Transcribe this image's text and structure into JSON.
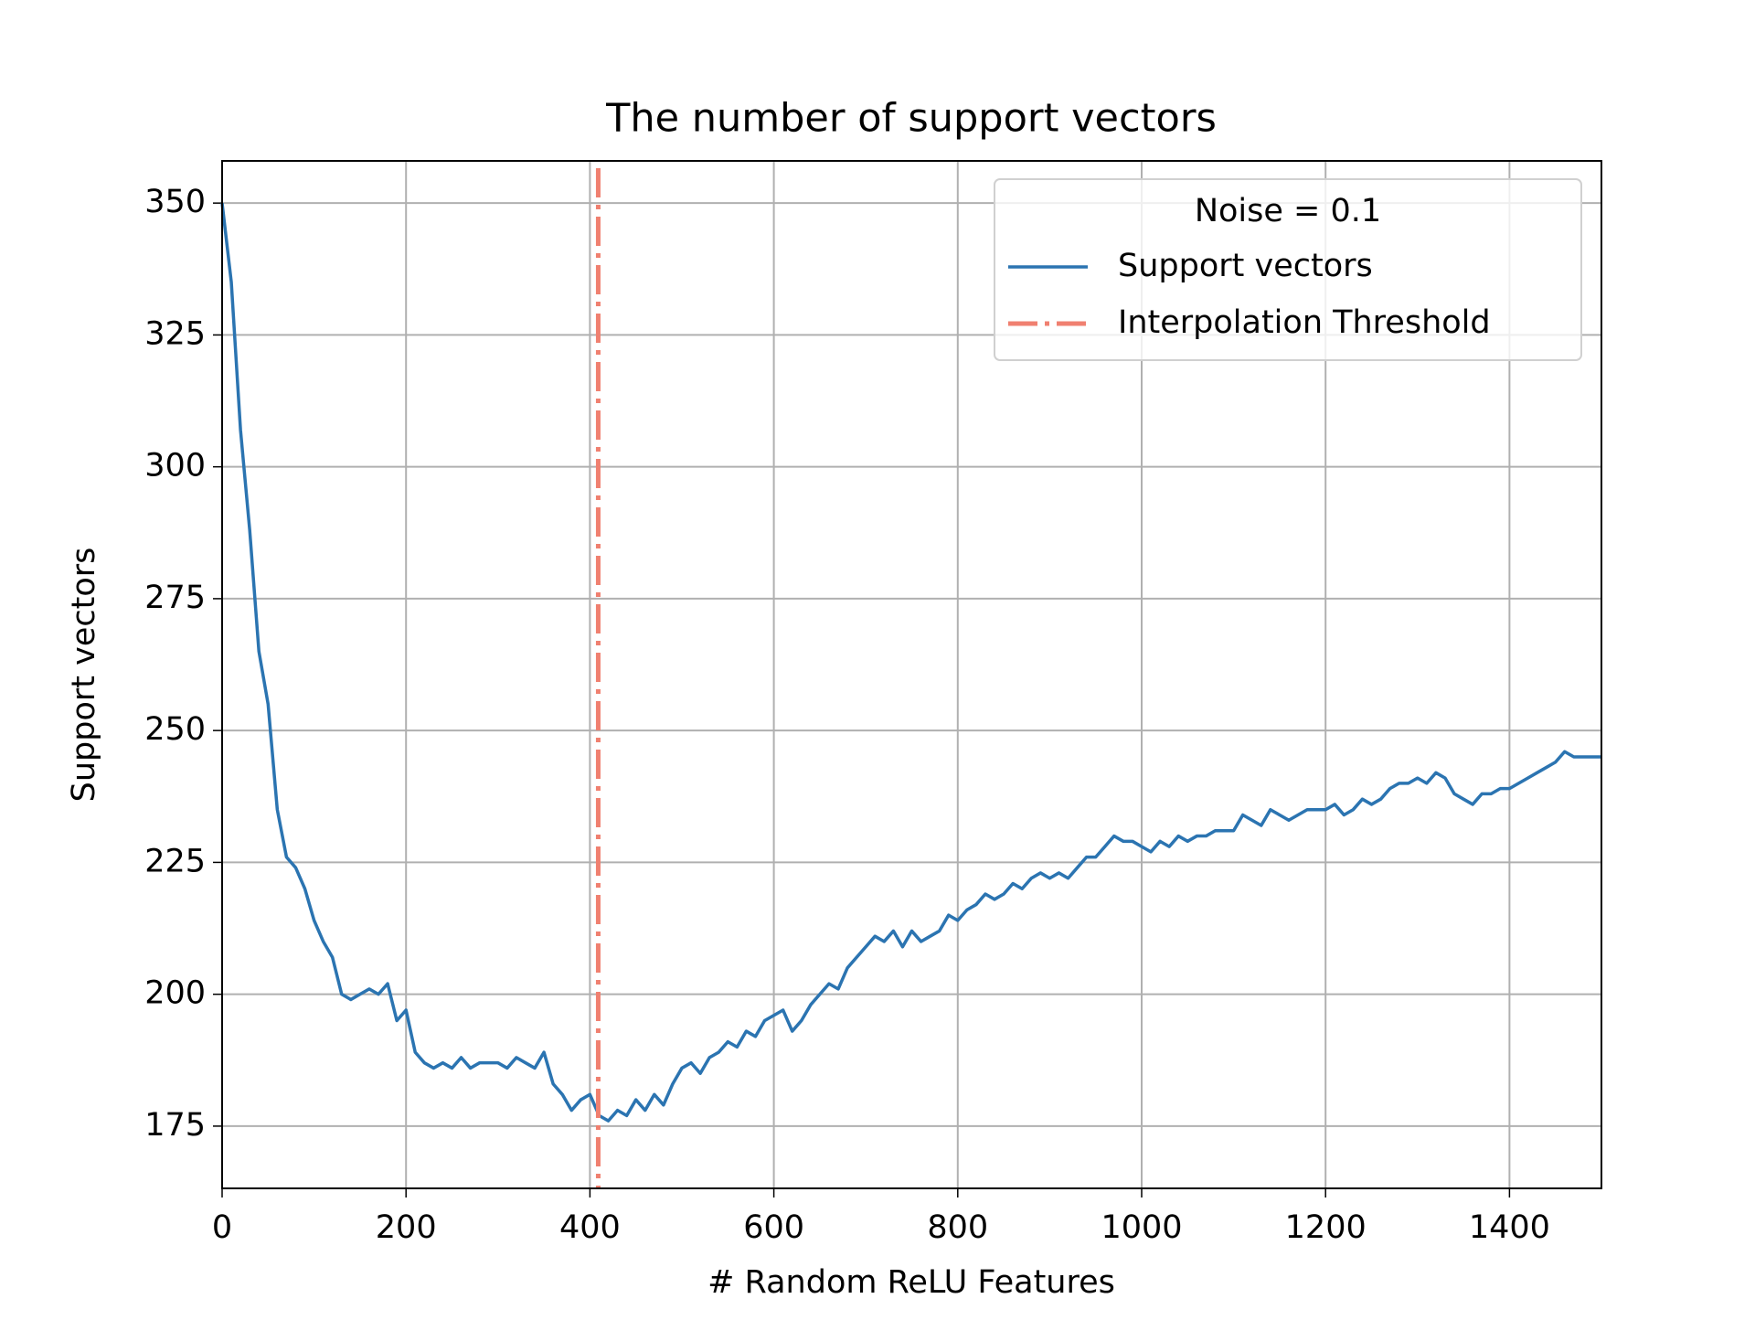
{
  "chart_data": {
    "type": "line",
    "title": "The number of support vectors",
    "xlabel": "# Random ReLU Features",
    "ylabel": "Support vectors",
    "x": [
      0,
      10,
      20,
      30,
      40,
      50,
      60,
      70,
      80,
      90,
      100,
      110,
      120,
      130,
      140,
      150,
      160,
      170,
      180,
      190,
      200,
      210,
      220,
      230,
      240,
      250,
      260,
      270,
      280,
      290,
      300,
      310,
      320,
      330,
      340,
      350,
      360,
      370,
      380,
      390,
      400,
      410,
      420,
      430,
      440,
      450,
      460,
      470,
      480,
      490,
      500,
      510,
      520,
      530,
      540,
      550,
      560,
      570,
      580,
      590,
      600,
      610,
      620,
      630,
      640,
      650,
      660,
      670,
      680,
      690,
      700,
      710,
      720,
      730,
      740,
      750,
      760,
      770,
      780,
      790,
      800,
      810,
      820,
      830,
      840,
      850,
      860,
      870,
      880,
      890,
      900,
      910,
      920,
      930,
      940,
      950,
      960,
      970,
      980,
      990,
      1000,
      1010,
      1020,
      1030,
      1040,
      1050,
      1060,
      1070,
      1080,
      1090,
      1100,
      1110,
      1120,
      1130,
      1140,
      1150,
      1160,
      1170,
      1180,
      1190,
      1200,
      1210,
      1220,
      1230,
      1240,
      1250,
      1260,
      1270,
      1280,
      1290,
      1300,
      1310,
      1320,
      1330,
      1340,
      1350,
      1360,
      1370,
      1380,
      1390,
      1400,
      1410,
      1420,
      1430,
      1440,
      1450,
      1460,
      1470,
      1480,
      1490,
      1500
    ],
    "series": [
      {
        "name": "Support vectors",
        "color": "#2b74b1",
        "values": [
          350,
          335,
          307,
          288,
          265,
          255,
          235,
          226,
          224,
          220,
          214,
          210,
          207,
          200,
          199,
          200,
          201,
          200,
          202,
          195,
          197,
          189,
          187,
          186,
          187,
          186,
          188,
          186,
          187,
          187,
          187,
          186,
          188,
          187,
          186,
          189,
          183,
          181,
          178,
          180,
          181,
          177,
          176,
          178,
          177,
          180,
          178,
          181,
          179,
          183,
          186,
          187,
          185,
          188,
          189,
          191,
          190,
          193,
          192,
          195,
          196,
          197,
          193,
          195,
          198,
          200,
          202,
          201,
          205,
          207,
          209,
          211,
          210,
          212,
          209,
          212,
          210,
          211,
          212,
          215,
          214,
          216,
          217,
          219,
          218,
          219,
          221,
          220,
          222,
          223,
          222,
          223,
          222,
          224,
          226,
          226,
          228,
          230,
          229,
          229,
          228,
          227,
          229,
          228,
          230,
          229,
          230,
          230,
          231,
          231,
          231,
          234,
          233,
          232,
          235,
          234,
          233,
          234,
          235,
          235,
          235,
          236,
          234,
          235,
          237,
          236,
          237,
          239,
          240,
          240,
          241,
          240,
          242,
          241,
          238,
          237,
          236,
          238,
          238,
          239,
          239,
          240,
          241,
          242,
          243,
          244,
          246,
          245,
          245,
          245,
          245
        ]
      }
    ],
    "vline": {
      "name": "Interpolation Threshold",
      "x": 409,
      "color": "#f08070"
    },
    "legend_title": "Noise = 0.1",
    "legend": "upper right",
    "xlim": [
      0,
      1500
    ],
    "ylim": [
      163.2,
      358
    ],
    "xticks": [
      0,
      200,
      400,
      600,
      800,
      1000,
      1200,
      1400
    ],
    "yticks": [
      175,
      200,
      225,
      250,
      275,
      300,
      325,
      350
    ],
    "grid": true
  }
}
